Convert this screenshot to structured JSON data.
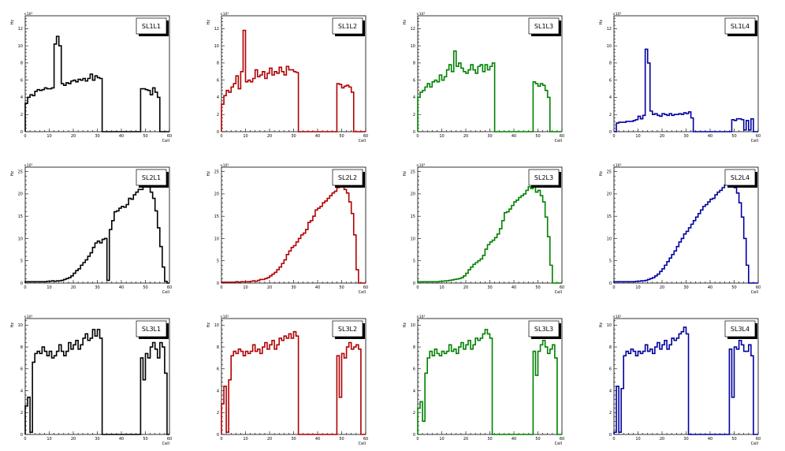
{
  "figure": {
    "background": "#ffffff"
  },
  "chart_data": [
    {
      "type": "line",
      "title": "SL1L1",
      "xlabel": "Cell",
      "ylabel": "Hz",
      "scale": "×10³",
      "xlim": [
        0,
        60
      ],
      "ylim": [
        0,
        13.5
      ],
      "xticks": [
        0,
        10,
        20,
        30,
        40,
        50,
        60
      ],
      "xtick_labels": [
        "0",
        "10",
        "20",
        "30",
        "40",
        "50",
        "60"
      ],
      "yticks": [
        0,
        2,
        4,
        6,
        8,
        10,
        12
      ],
      "ytick_labels": [
        "0",
        "2",
        "4",
        "6",
        "8",
        "10",
        "12"
      ],
      "color": "#000000",
      "values": [
        3.3,
        4.0,
        4.3,
        4.2,
        4.7,
        4.9,
        4.8,
        4.9,
        5.1,
        5.0,
        5.0,
        5.1,
        10.2,
        11.1,
        10.0,
        5.6,
        5.4,
        5.7,
        5.6,
        5.9,
        6.0,
        5.8,
        6.1,
        6.0,
        6.2,
        5.9,
        6.2,
        6.7,
        6.0,
        6.5,
        6.3,
        6.2,
        0,
        0,
        0,
        0,
        0,
        0,
        0,
        0,
        0,
        0,
        0,
        0,
        0,
        0,
        0,
        0,
        5.0,
        5.0,
        4.9,
        4.8,
        4.3,
        5.1,
        4.6,
        4.0,
        0,
        0,
        0,
        0
      ]
    },
    {
      "type": "line",
      "title": "SL1L2",
      "xlabel": "Cell",
      "ylabel": "Hz",
      "scale": "×10³",
      "xlim": [
        0,
        60
      ],
      "ylim": [
        0,
        13.5
      ],
      "xticks": [
        0,
        10,
        20,
        30,
        40,
        50,
        60
      ],
      "xtick_labels": [
        "0",
        "10",
        "20",
        "30",
        "40",
        "50",
        "60"
      ],
      "yticks": [
        0,
        2,
        4,
        6,
        8,
        10,
        12
      ],
      "ytick_labels": [
        "0",
        "2",
        "4",
        "6",
        "8",
        "10",
        "12"
      ],
      "color": "#b00000",
      "values": [
        3.2,
        4.2,
        4.8,
        4.6,
        5.2,
        5.6,
        6.5,
        5.0,
        7.0,
        11.8,
        5.8,
        6.0,
        5.8,
        6.2,
        7.2,
        6.4,
        6.6,
        7.0,
        6.2,
        6.8,
        7.4,
        6.6,
        7.0,
        6.8,
        7.5,
        7.0,
        6.6,
        7.6,
        7.2,
        7.2,
        7.0,
        6.9,
        0,
        0,
        0,
        0,
        0,
        0,
        0,
        0,
        0,
        0,
        0,
        0,
        0,
        0,
        0,
        0,
        5.6,
        5.5,
        5.1,
        5.3,
        5.4,
        5.2,
        4.6,
        0,
        0,
        0,
        0,
        0
      ]
    },
    {
      "type": "line",
      "title": "SL1L3",
      "xlabel": "Cell",
      "ylabel": "Hz",
      "scale": "×10³",
      "xlim": [
        0,
        60
      ],
      "ylim": [
        0,
        13.5
      ],
      "xticks": [
        0,
        10,
        20,
        30,
        40,
        50,
        60
      ],
      "xtick_labels": [
        "0",
        "10",
        "20",
        "30",
        "40",
        "50",
        "60"
      ],
      "yticks": [
        0,
        2,
        4,
        6,
        8,
        10,
        12
      ],
      "ytick_labels": [
        "0",
        "2",
        "4",
        "6",
        "8",
        "10",
        "12"
      ],
      "color": "#008000",
      "values": [
        4.0,
        4.6,
        4.8,
        5.2,
        5.6,
        5.2,
        5.8,
        6.0,
        5.8,
        6.6,
        6.0,
        6.4,
        7.2,
        7.8,
        7.0,
        9.4,
        7.6,
        8.0,
        7.4,
        7.0,
        6.8,
        7.2,
        7.8,
        7.2,
        6.8,
        7.6,
        7.8,
        7.0,
        7.8,
        7.2,
        7.6,
        8.0,
        0,
        0,
        0,
        0,
        0,
        0,
        0,
        0,
        0,
        0,
        0,
        0,
        0,
        0,
        0,
        0,
        5.8,
        5.6,
        5.3,
        5.6,
        5.4,
        4.8,
        4.0,
        0,
        0,
        0,
        0,
        0
      ]
    },
    {
      "type": "line",
      "title": "SL1L4",
      "xlabel": "Cell",
      "ylabel": "Hz",
      "scale": "×10³",
      "xlim": [
        0,
        60
      ],
      "ylim": [
        0,
        13.5
      ],
      "xticks": [
        0,
        10,
        20,
        30,
        40,
        50,
        60
      ],
      "xtick_labels": [
        "0",
        "10",
        "20",
        "30",
        "40",
        "50",
        "60"
      ],
      "yticks": [
        0,
        2,
        4,
        6,
        8,
        10,
        12
      ],
      "ytick_labels": [
        "0",
        "2",
        "4",
        "6",
        "8",
        "10",
        "12"
      ],
      "color": "#0000a0",
      "values": [
        0,
        1.0,
        1.1,
        1.1,
        1.1,
        1.2,
        1.2,
        1.2,
        1.3,
        1.4,
        1.8,
        1.5,
        1.9,
        9.6,
        8.0,
        2.4,
        2.0,
        2.1,
        1.9,
        1.8,
        2.1,
        2.0,
        1.9,
        2.1,
        1.9,
        2.0,
        2.0,
        2.1,
        2.0,
        2.2,
        2.1,
        2.3,
        1.6,
        0,
        0,
        0,
        0,
        0,
        0,
        0,
        0,
        0,
        0,
        0,
        0,
        0,
        0,
        0,
        0,
        1.4,
        1.3,
        1.5,
        1.5,
        1.4,
        0.2,
        1.3,
        0.2,
        1.5,
        0,
        0
      ]
    },
    {
      "type": "line",
      "title": "SL2L1",
      "xlabel": "Cell",
      "ylabel": "Hz",
      "scale": "×10³",
      "xlim": [
        0,
        60
      ],
      "ylim": [
        0,
        26
      ],
      "xticks": [
        0,
        10,
        20,
        30,
        40,
        50,
        60
      ],
      "xtick_labels": [
        "0",
        "10",
        "20",
        "30",
        "40",
        "50",
        "60"
      ],
      "yticks": [
        0,
        5,
        10,
        15,
        20,
        25
      ],
      "ytick_labels": [
        "0",
        "5",
        "10",
        "15",
        "20",
        "25"
      ],
      "color": "#000000",
      "values": [
        0.3,
        0.3,
        0.3,
        0.3,
        0.3,
        0.3,
        0.3,
        0.3,
        0.3,
        0.4,
        0.4,
        0.5,
        0.4,
        0.5,
        0.5,
        0.6,
        0.8,
        1.0,
        1.2,
        1.6,
        2.2,
        2.8,
        3.2,
        4.0,
        4.6,
        5.2,
        6.0,
        6.8,
        8.0,
        9.0,
        9.4,
        9.0,
        9.8,
        10.0,
        0.6,
        12.0,
        14.0,
        16.0,
        16.2,
        16.8,
        17.2,
        17.0,
        17.6,
        19.0,
        18.8,
        19.8,
        20.4,
        21.0,
        21.0,
        21.6,
        22.2,
        21.6,
        20.4,
        19.0,
        16.2,
        12.4,
        8.2,
        3.6,
        0.4,
        0
      ]
    },
    {
      "type": "line",
      "title": "SL2L2",
      "xlabel": "Cell",
      "ylabel": "Hz",
      "scale": "×10³",
      "xlim": [
        0,
        60
      ],
      "ylim": [
        0,
        26
      ],
      "xticks": [
        0,
        10,
        20,
        30,
        40,
        50,
        60
      ],
      "xtick_labels": [
        "0",
        "10",
        "20",
        "30",
        "40",
        "50",
        "60"
      ],
      "yticks": [
        0,
        5,
        10,
        15,
        20,
        25
      ],
      "ytick_labels": [
        "0",
        "5",
        "10",
        "15",
        "20",
        "25"
      ],
      "color": "#b00000",
      "values": [
        0.2,
        0.2,
        0.2,
        0.2,
        0.2,
        0.2,
        0.3,
        0.2,
        0.3,
        0.3,
        0.3,
        0.3,
        0.4,
        0.5,
        0.4,
        0.6,
        0.8,
        0.8,
        1.0,
        1.2,
        1.6,
        2.0,
        2.4,
        3.0,
        3.6,
        4.4,
        5.2,
        6.4,
        7.2,
        8.0,
        8.4,
        9.2,
        10.0,
        10.8,
        11.2,
        12.0,
        13.6,
        14.0,
        15.0,
        16.4,
        16.8,
        17.2,
        18.0,
        18.4,
        19.0,
        19.6,
        20.2,
        20.6,
        21.4,
        21.8,
        21.6,
        21.0,
        20.2,
        18.2,
        15.6,
        10.8,
        3.0,
        0,
        0,
        0
      ]
    },
    {
      "type": "line",
      "title": "SL2L3",
      "xlabel": "Cell",
      "ylabel": "Hz",
      "scale": "×10³",
      "xlim": [
        0,
        60
      ],
      "ylim": [
        0,
        26
      ],
      "xticks": [
        0,
        10,
        20,
        30,
        40,
        50,
        60
      ],
      "xtick_labels": [
        "0",
        "10",
        "20",
        "30",
        "40",
        "50",
        "60"
      ],
      "yticks": [
        0,
        5,
        10,
        15,
        20,
        25
      ],
      "ytick_labels": [
        "0",
        "5",
        "10",
        "15",
        "20",
        "25"
      ],
      "color": "#008000",
      "values": [
        0.3,
        0.3,
        0.3,
        0.3,
        0.3,
        0.3,
        0.3,
        0.3,
        0.3,
        0.4,
        0.4,
        0.5,
        0.5,
        0.6,
        0.7,
        0.8,
        0.9,
        1.0,
        1.2,
        1.6,
        2.2,
        3.0,
        3.6,
        4.2,
        4.6,
        5.0,
        5.4,
        6.2,
        7.6,
        8.6,
        9.2,
        9.6,
        10.2,
        11.0,
        12.2,
        14.0,
        15.8,
        16.0,
        16.6,
        17.4,
        18.2,
        18.6,
        19.2,
        19.6,
        20.0,
        20.8,
        21.6,
        21.2,
        21.6,
        20.4,
        20.8,
        19.6,
        18.2,
        14.8,
        10.4,
        4.0,
        0,
        0,
        0,
        0
      ]
    },
    {
      "type": "line",
      "title": "SL2L4",
      "xlabel": "Cell",
      "ylabel": "Hz",
      "scale": "×10³",
      "xlim": [
        0,
        60
      ],
      "ylim": [
        0,
        26
      ],
      "xticks": [
        0,
        10,
        20,
        30,
        40,
        50,
        60
      ],
      "xtick_labels": [
        "0",
        "10",
        "20",
        "30",
        "40",
        "50",
        "60"
      ],
      "yticks": [
        0,
        5,
        10,
        15,
        20,
        25
      ],
      "ytick_labels": [
        "0",
        "5",
        "10",
        "15",
        "20",
        "25"
      ],
      "color": "#0000a0",
      "values": [
        0.3,
        0.3,
        0.3,
        0.3,
        0.3,
        0.3,
        0.3,
        0.3,
        0.3,
        0.4,
        0.4,
        0.5,
        0.5,
        0.6,
        0.8,
        1.0,
        1.2,
        1.6,
        2.0,
        2.6,
        3.2,
        4.0,
        4.8,
        5.6,
        6.4,
        7.2,
        8.2,
        9.2,
        10.0,
        11.0,
        11.6,
        12.4,
        13.2,
        14.0,
        14.8,
        15.6,
        16.4,
        17.2,
        17.6,
        18.2,
        18.8,
        19.0,
        19.8,
        20.4,
        20.8,
        21.4,
        22.0,
        22.6,
        22.6,
        22.0,
        21.4,
        20.2,
        18.0,
        14.8,
        10.0,
        4.0,
        0,
        0,
        0,
        0
      ]
    },
    {
      "type": "line",
      "title": "SL3L1",
      "xlabel": "Cell",
      "ylabel": "Hz",
      "scale": "×10³",
      "xlim": [
        0,
        60
      ],
      "ylim": [
        0,
        10.6
      ],
      "xticks": [
        0,
        10,
        20,
        30,
        40,
        50,
        60
      ],
      "xtick_labels": [
        "0",
        "10",
        "20",
        "30",
        "40",
        "50",
        "60"
      ],
      "yticks": [
        0,
        2,
        4,
        6,
        8,
        10
      ],
      "ytick_labels": [
        "0",
        "2",
        "4",
        "6",
        "8",
        "10"
      ],
      "color": "#000000",
      "values": [
        2.6,
        3.4,
        0.2,
        6.6,
        7.4,
        7.6,
        7.4,
        8.0,
        7.6,
        7.2,
        7.6,
        7.0,
        7.2,
        7.6,
        8.2,
        7.6,
        7.2,
        7.6,
        8.4,
        7.8,
        8.2,
        8.6,
        7.8,
        8.2,
        8.8,
        9.2,
        8.6,
        8.8,
        9.6,
        9.0,
        9.6,
        8.8,
        0,
        0,
        0,
        0,
        0,
        0,
        0,
        0,
        0,
        0,
        0,
        0,
        0,
        0,
        0,
        0,
        7.0,
        5.0,
        7.4,
        7.0,
        8.0,
        8.4,
        7.8,
        7.0,
        8.4,
        8.0,
        5.6,
        0
      ]
    },
    {
      "type": "line",
      "title": "SL3L2",
      "xlabel": "Cell",
      "ylabel": "Hz",
      "scale": "×10³",
      "xlim": [
        0,
        60
      ],
      "ylim": [
        0,
        10.6
      ],
      "xticks": [
        0,
        10,
        20,
        30,
        40,
        50,
        60
      ],
      "xtick_labels": [
        "0",
        "10",
        "20",
        "30",
        "40",
        "50",
        "60"
      ],
      "yticks": [
        0,
        2,
        4,
        6,
        8,
        10
      ],
      "ytick_labels": [
        "0",
        "2",
        "4",
        "6",
        "8",
        "10"
      ],
      "color": "#b00000",
      "values": [
        2.8,
        4.4,
        0.2,
        5.0,
        7.2,
        7.6,
        7.4,
        7.8,
        7.6,
        7.2,
        7.6,
        7.4,
        7.6,
        8.2,
        7.6,
        7.8,
        7.4,
        8.0,
        8.4,
        7.8,
        8.2,
        8.6,
        7.8,
        8.2,
        8.8,
        8.6,
        9.0,
        8.8,
        9.2,
        8.8,
        9.4,
        9.0,
        0,
        0,
        0,
        0,
        0,
        0,
        0,
        0,
        0,
        0,
        0,
        0,
        0,
        0,
        0,
        0,
        7.2,
        3.4,
        7.4,
        7.0,
        8.0,
        8.4,
        7.8,
        8.0,
        8.2,
        7.8,
        0,
        0
      ]
    },
    {
      "type": "line",
      "title": "SL3L3",
      "xlabel": "Cell",
      "ylabel": "Hz",
      "scale": "×10³",
      "xlim": [
        0,
        60
      ],
      "ylim": [
        0,
        10.6
      ],
      "xticks": [
        0,
        10,
        20,
        30,
        40,
        50,
        60
      ],
      "xtick_labels": [
        "0",
        "10",
        "20",
        "30",
        "40",
        "50",
        "60"
      ],
      "yticks": [
        0,
        2,
        4,
        6,
        8,
        10
      ],
      "ytick_labels": [
        "0",
        "2",
        "4",
        "6",
        "8",
        "10"
      ],
      "color": "#008000",
      "values": [
        2.4,
        3.0,
        1.2,
        5.6,
        7.0,
        7.6,
        7.2,
        7.8,
        7.4,
        7.2,
        7.6,
        7.4,
        7.6,
        8.2,
        7.6,
        7.8,
        7.4,
        8.0,
        8.4,
        7.8,
        8.2,
        8.6,
        7.8,
        8.2,
        8.8,
        8.6,
        8.8,
        9.2,
        9.6,
        9.2,
        8.8,
        0,
        0,
        0,
        0,
        0,
        0,
        0,
        0,
        0,
        0,
        0,
        0,
        0,
        0,
        0,
        0,
        0,
        7.6,
        5.4,
        7.6,
        8.2,
        8.6,
        8.0,
        7.4,
        7.8,
        8.2,
        7.0,
        0,
        0
      ]
    },
    {
      "type": "line",
      "title": "SL3L4",
      "xlabel": "Cell",
      "ylabel": "Hz",
      "scale": "×10³",
      "xlim": [
        0,
        60
      ],
      "ylim": [
        0,
        10.6
      ],
      "xticks": [
        0,
        10,
        20,
        30,
        40,
        50,
        60
      ],
      "xtick_labels": [
        "0",
        "10",
        "20",
        "30",
        "40",
        "50",
        "60"
      ],
      "yticks": [
        0,
        2,
        4,
        6,
        8,
        10
      ],
      "ytick_labels": [
        "0",
        "2",
        "4",
        "6",
        "8",
        "10"
      ],
      "color": "#0000a0",
      "values": [
        0.2,
        4.4,
        0.2,
        4.2,
        7.2,
        7.6,
        7.4,
        7.8,
        7.6,
        7.2,
        7.6,
        7.4,
        7.6,
        8.2,
        7.6,
        7.8,
        7.4,
        8.0,
        8.4,
        7.8,
        8.2,
        8.6,
        7.8,
        8.2,
        8.8,
        8.6,
        8.8,
        9.2,
        9.4,
        9.8,
        9.2,
        0,
        0,
        0,
        0,
        0,
        0,
        0,
        0,
        0,
        0,
        0,
        0,
        0,
        0,
        0,
        0,
        0,
        7.8,
        3.4,
        8.0,
        7.8,
        8.6,
        8.2,
        7.6,
        7.6,
        8.2,
        7.2,
        0,
        0
      ]
    }
  ]
}
